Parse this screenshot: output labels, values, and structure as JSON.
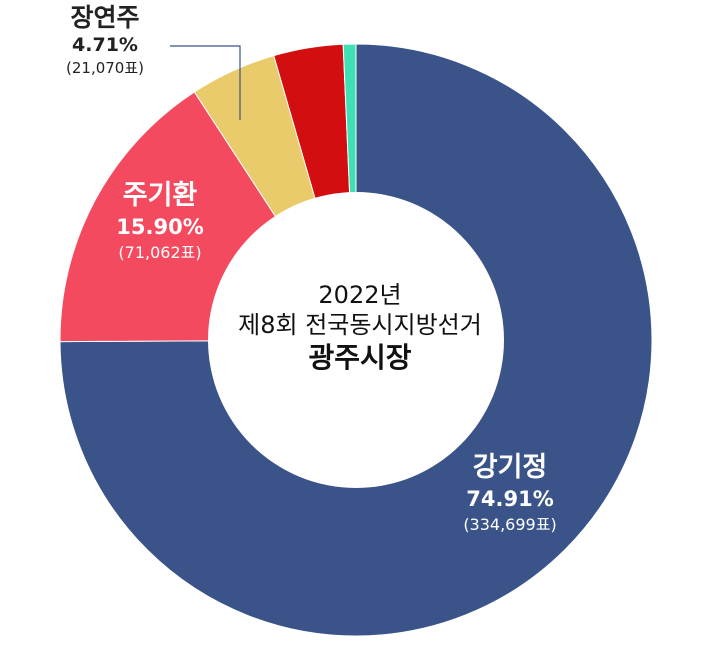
{
  "chart_data": {
    "type": "pie",
    "center_text": {
      "line1": "2022년",
      "line2": "제8회 전국동시지방선거",
      "line3": "광주시장"
    },
    "slices": [
      {
        "name": "강기정",
        "percent": 74.91,
        "percent_label": "74.91%",
        "votes_label": "(334,699표)",
        "color": "#3a5388"
      },
      {
        "name": "주기환",
        "percent": 15.9,
        "percent_label": "15.90%",
        "votes_label": "(71,062표)",
        "color": "#f44a5f"
      },
      {
        "name": "장연주",
        "percent": 4.71,
        "percent_label": "4.71%",
        "votes_label": "(21,070표)",
        "color": "#e9cb6b"
      },
      {
        "name": "",
        "percent": 3.79,
        "color": "#d30e10"
      },
      {
        "name": "",
        "percent": 0.69,
        "color": "#3fe0b5"
      }
    ]
  }
}
